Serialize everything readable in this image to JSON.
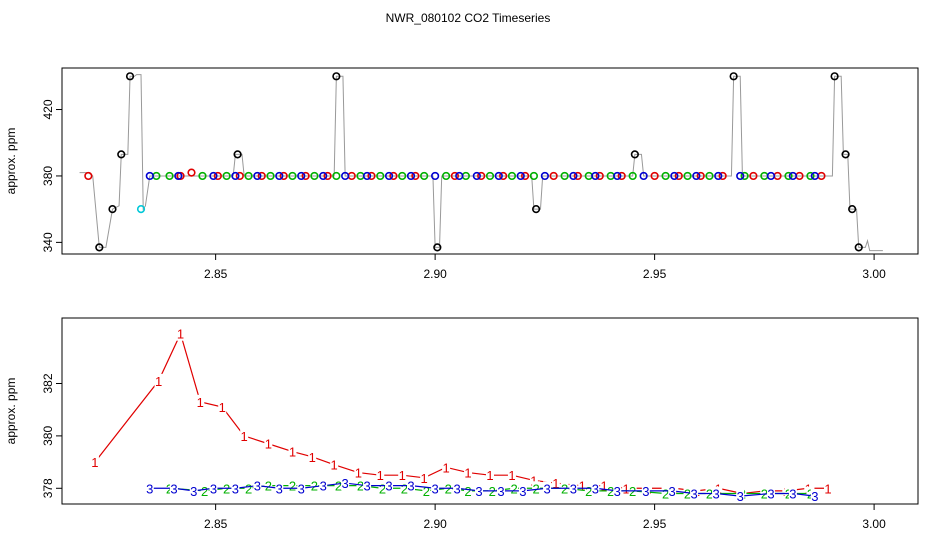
{
  "title": "NWR_080102  CO2 Timeseries",
  "colors": {
    "s1": "#e00000",
    "s2": "#00b000",
    "s3": "#0000d0",
    "standard": "#000000",
    "special": "#00c8d8",
    "trace": "#999999"
  },
  "chart_data": [
    {
      "type": "scatter",
      "ylabel": "approx. ppm",
      "xlim": [
        2.815,
        3.01
      ],
      "ylim": [
        333,
        445
      ],
      "xticks": [
        "2.85",
        "2.90",
        "2.95",
        "3.00"
      ],
      "yticks": [
        "340",
        "380",
        "420"
      ],
      "grid": false,
      "trace": [
        [
          2.819,
          382
        ],
        [
          2.821,
          382
        ],
        [
          2.822,
          380
        ],
        [
          2.8235,
          337
        ],
        [
          2.825,
          337
        ],
        [
          2.8265,
          360
        ],
        [
          2.828,
          362
        ],
        [
          2.8285,
          393
        ],
        [
          2.83,
          393
        ],
        [
          2.8305,
          440
        ],
        [
          2.8315,
          440
        ],
        [
          2.832,
          441
        ],
        [
          2.833,
          441
        ],
        [
          2.8335,
          360
        ],
        [
          2.834,
          362
        ],
        [
          2.835,
          380
        ],
        [
          2.854,
          380
        ],
        [
          2.8545,
          393
        ],
        [
          2.856,
          393
        ],
        [
          2.8565,
          380
        ],
        [
          2.877,
          380
        ],
        [
          2.8775,
          440
        ],
        [
          2.879,
          440
        ],
        [
          2.8795,
          380
        ],
        [
          2.8995,
          380
        ],
        [
          2.9,
          337
        ],
        [
          2.901,
          337
        ],
        [
          2.9015,
          380
        ],
        [
          2.922,
          380
        ],
        [
          2.9225,
          360
        ],
        [
          2.924,
          360
        ],
        [
          2.9245,
          380
        ],
        [
          2.945,
          380
        ],
        [
          2.9455,
          393
        ],
        [
          2.947,
          393
        ],
        [
          2.9475,
          380
        ],
        [
          2.9675,
          380
        ],
        [
          2.968,
          440
        ],
        [
          2.9695,
          440
        ],
        [
          2.97,
          380
        ],
        [
          2.9905,
          380
        ],
        [
          2.991,
          440
        ],
        [
          2.9925,
          440
        ],
        [
          2.993,
          393
        ],
        [
          2.994,
          393
        ],
        [
          2.9945,
          360
        ],
        [
          2.996,
          360
        ],
        [
          2.9965,
          337
        ],
        [
          2.998,
          337
        ],
        [
          2.9985,
          341
        ],
        [
          2.999,
          335
        ],
        [
          3.002,
          335
        ]
      ],
      "points": {
        "s1": [
          [
            2.821,
            380
          ],
          [
            2.842,
            380
          ],
          [
            2.8445,
            382
          ],
          [
            2.8505,
            380
          ],
          [
            2.8555,
            380
          ],
          [
            2.8605,
            380
          ],
          [
            2.8655,
            380
          ],
          [
            2.8705,
            380
          ],
          [
            2.8755,
            380
          ],
          [
            2.881,
            380
          ],
          [
            2.8855,
            380
          ],
          [
            2.8905,
            380
          ],
          [
            2.8955,
            380
          ],
          [
            2.9045,
            380
          ],
          [
            2.9105,
            380
          ],
          [
            2.9155,
            380
          ],
          [
            2.9205,
            380
          ],
          [
            2.927,
            380
          ],
          [
            2.9325,
            380
          ],
          [
            2.9375,
            380
          ],
          [
            2.9425,
            380
          ],
          [
            2.95,
            380
          ],
          [
            2.9555,
            380
          ],
          [
            2.9605,
            380
          ],
          [
            2.9655,
            380
          ],
          [
            2.9725,
            380
          ],
          [
            2.978,
            380
          ],
          [
            2.983,
            380
          ],
          [
            2.988,
            380
          ]
        ],
        "s2": [
          [
            2.8365,
            380
          ],
          [
            2.8395,
            380
          ],
          [
            2.847,
            380
          ],
          [
            2.8525,
            380
          ],
          [
            2.8575,
            380
          ],
          [
            2.8625,
            380
          ],
          [
            2.8675,
            380
          ],
          [
            2.8725,
            380
          ],
          [
            2.8775,
            380
          ],
          [
            2.883,
            380
          ],
          [
            2.8875,
            380
          ],
          [
            2.8925,
            380
          ],
          [
            2.8975,
            380
          ],
          [
            2.9025,
            380
          ],
          [
            2.907,
            380
          ],
          [
            2.9125,
            380
          ],
          [
            2.9175,
            380
          ],
          [
            2.9225,
            380
          ],
          [
            2.9295,
            380
          ],
          [
            2.935,
            380
          ],
          [
            2.94,
            380
          ],
          [
            2.945,
            380
          ],
          [
            2.9525,
            380
          ],
          [
            2.9575,
            380
          ],
          [
            2.9625,
            380
          ],
          [
            2.9705,
            380
          ],
          [
            2.975,
            380
          ],
          [
            2.9805,
            380
          ],
          [
            2.9855,
            380
          ]
        ],
        "s3": [
          [
            2.835,
            380
          ],
          [
            2.8415,
            380
          ],
          [
            2.8495,
            380
          ],
          [
            2.8545,
            380
          ],
          [
            2.8595,
            380
          ],
          [
            2.8645,
            380
          ],
          [
            2.8695,
            380
          ],
          [
            2.8745,
            380
          ],
          [
            2.8795,
            380
          ],
          [
            2.8845,
            380
          ],
          [
            2.8895,
            380
          ],
          [
            2.8945,
            380
          ],
          [
            2.9,
            380
          ],
          [
            2.9055,
            380
          ],
          [
            2.9095,
            380
          ],
          [
            2.9145,
            380
          ],
          [
            2.9195,
            380
          ],
          [
            2.925,
            380
          ],
          [
            2.9315,
            380
          ],
          [
            2.9365,
            380
          ],
          [
            2.9415,
            380
          ],
          [
            2.9475,
            380
          ],
          [
            2.9545,
            380
          ],
          [
            2.9595,
            380
          ],
          [
            2.9645,
            380
          ],
          [
            2.9695,
            380
          ],
          [
            2.9765,
            380
          ],
          [
            2.9815,
            380
          ],
          [
            2.9865,
            380
          ]
        ],
        "standard": [
          [
            2.8235,
            337
          ],
          [
            2.8265,
            360
          ],
          [
            2.8285,
            393
          ],
          [
            2.8305,
            440
          ],
          [
            2.855,
            393
          ],
          [
            2.8775,
            440
          ],
          [
            2.9005,
            337
          ],
          [
            2.923,
            360
          ],
          [
            2.9455,
            393
          ],
          [
            2.968,
            440
          ],
          [
            2.991,
            440
          ],
          [
            2.9935,
            393
          ],
          [
            2.995,
            360
          ],
          [
            2.9965,
            337
          ]
        ],
        "special": [
          [
            2.833,
            360
          ]
        ]
      }
    },
    {
      "type": "line",
      "ylabel": "approx. ppm",
      "xlim": [
        2.815,
        3.01
      ],
      "ylim": [
        377.4,
        384.5
      ],
      "xticks": [
        "2.85",
        "2.90",
        "2.95",
        "3.00"
      ],
      "yticks": [
        "378",
        "380",
        "382"
      ],
      "grid": false,
      "series": [
        {
          "label": "1",
          "x": [
            2.8225,
            2.837,
            2.842,
            2.8465,
            2.8515,
            2.8565,
            2.862,
            2.8675,
            2.872,
            2.877,
            2.8825,
            2.8875,
            2.8925,
            2.8975,
            2.9025,
            2.9075,
            2.9125,
            2.9175,
            2.9225,
            2.9275,
            2.9335,
            2.9385,
            2.9435,
            2.9485,
            2.9545,
            2.9595,
            2.9645,
            2.97,
            2.975,
            2.98,
            2.985,
            2.9895
          ],
          "values": [
            379.0,
            382.1,
            383.9,
            381.3,
            381.1,
            380.0,
            379.7,
            379.4,
            379.2,
            378.9,
            378.6,
            378.5,
            378.5,
            378.4,
            378.8,
            378.6,
            378.5,
            378.5,
            378.3,
            378.2,
            378.1,
            378.1,
            378.0,
            378.0,
            378.0,
            377.9,
            378.0,
            377.8,
            377.9,
            377.9,
            378.0,
            378.0
          ]
        },
        {
          "label": "2",
          "x": [
            2.8395,
            2.8475,
            2.8525,
            2.8575,
            2.862,
            2.8675,
            2.8725,
            2.878,
            2.883,
            2.888,
            2.893,
            2.898,
            2.903,
            2.9075,
            2.913,
            2.918,
            2.923,
            2.9295,
            2.935,
            2.94,
            2.945,
            2.9525,
            2.9575,
            2.9625,
            2.97,
            2.975,
            2.9805,
            2.9855
          ],
          "values": [
            378.0,
            377.9,
            378.0,
            378.0,
            378.1,
            378.1,
            378.1,
            378.1,
            378.1,
            378.0,
            378.0,
            377.9,
            378.0,
            377.9,
            377.9,
            378.0,
            378.0,
            378.0,
            377.9,
            377.9,
            377.9,
            377.8,
            377.8,
            377.8,
            377.8,
            377.8,
            377.8,
            377.8
          ]
        },
        {
          "label": "3",
          "x": [
            2.835,
            2.8405,
            2.845,
            2.8495,
            2.8545,
            2.8595,
            2.8645,
            2.8695,
            2.8745,
            2.8795,
            2.8845,
            2.8895,
            2.8945,
            2.9,
            2.905,
            2.91,
            2.915,
            2.92,
            2.9255,
            2.9315,
            2.9365,
            2.9415,
            2.948,
            2.954,
            2.959,
            2.964,
            2.9695,
            2.9765,
            2.9815,
            2.9865
          ],
          "values": [
            378.0,
            378.0,
            377.9,
            378.0,
            378.0,
            378.1,
            378.0,
            378.0,
            378.1,
            378.2,
            378.1,
            378.1,
            378.1,
            378.0,
            378.0,
            377.9,
            377.9,
            377.9,
            378.0,
            378.0,
            378.0,
            377.9,
            377.9,
            377.9,
            377.8,
            377.8,
            377.7,
            377.8,
            377.8,
            377.7
          ]
        }
      ]
    }
  ]
}
